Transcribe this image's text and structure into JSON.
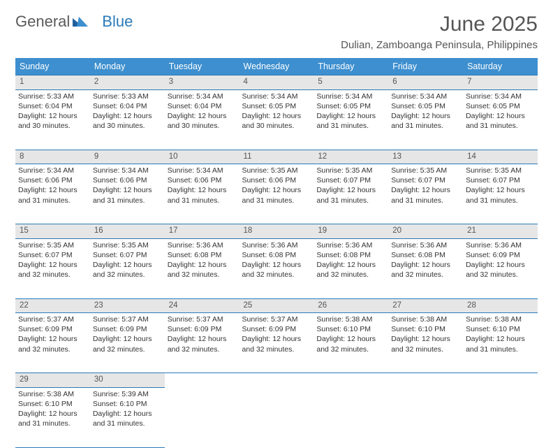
{
  "brand": {
    "part1": "General",
    "part2": "Blue"
  },
  "title": "June 2025",
  "location": "Dulian, Zamboanga Peninsula, Philippines",
  "colors": {
    "header_bg": "#3d8fcf",
    "border": "#2a7ab8",
    "daynum_bg": "#e6e6e6",
    "text": "#333333",
    "title_text": "#555555"
  },
  "fonts": {
    "base_family": "Arial",
    "title_size_pt": 22,
    "cell_size_pt": 8
  },
  "days": [
    "Sunday",
    "Monday",
    "Tuesday",
    "Wednesday",
    "Thursday",
    "Friday",
    "Saturday"
  ],
  "weeks": [
    [
      {
        "n": "1",
        "sr": "5:33 AM",
        "ss": "6:04 PM",
        "dl": "12 hours and 30 minutes."
      },
      {
        "n": "2",
        "sr": "5:33 AM",
        "ss": "6:04 PM",
        "dl": "12 hours and 30 minutes."
      },
      {
        "n": "3",
        "sr": "5:34 AM",
        "ss": "6:04 PM",
        "dl": "12 hours and 30 minutes."
      },
      {
        "n": "4",
        "sr": "5:34 AM",
        "ss": "6:05 PM",
        "dl": "12 hours and 30 minutes."
      },
      {
        "n": "5",
        "sr": "5:34 AM",
        "ss": "6:05 PM",
        "dl": "12 hours and 31 minutes."
      },
      {
        "n": "6",
        "sr": "5:34 AM",
        "ss": "6:05 PM",
        "dl": "12 hours and 31 minutes."
      },
      {
        "n": "7",
        "sr": "5:34 AM",
        "ss": "6:05 PM",
        "dl": "12 hours and 31 minutes."
      }
    ],
    [
      {
        "n": "8",
        "sr": "5:34 AM",
        "ss": "6:06 PM",
        "dl": "12 hours and 31 minutes."
      },
      {
        "n": "9",
        "sr": "5:34 AM",
        "ss": "6:06 PM",
        "dl": "12 hours and 31 minutes."
      },
      {
        "n": "10",
        "sr": "5:34 AM",
        "ss": "6:06 PM",
        "dl": "12 hours and 31 minutes."
      },
      {
        "n": "11",
        "sr": "5:35 AM",
        "ss": "6:06 PM",
        "dl": "12 hours and 31 minutes."
      },
      {
        "n": "12",
        "sr": "5:35 AM",
        "ss": "6:07 PM",
        "dl": "12 hours and 31 minutes."
      },
      {
        "n": "13",
        "sr": "5:35 AM",
        "ss": "6:07 PM",
        "dl": "12 hours and 31 minutes."
      },
      {
        "n": "14",
        "sr": "5:35 AM",
        "ss": "6:07 PM",
        "dl": "12 hours and 31 minutes."
      }
    ],
    [
      {
        "n": "15",
        "sr": "5:35 AM",
        "ss": "6:07 PM",
        "dl": "12 hours and 32 minutes."
      },
      {
        "n": "16",
        "sr": "5:35 AM",
        "ss": "6:07 PM",
        "dl": "12 hours and 32 minutes."
      },
      {
        "n": "17",
        "sr": "5:36 AM",
        "ss": "6:08 PM",
        "dl": "12 hours and 32 minutes."
      },
      {
        "n": "18",
        "sr": "5:36 AM",
        "ss": "6:08 PM",
        "dl": "12 hours and 32 minutes."
      },
      {
        "n": "19",
        "sr": "5:36 AM",
        "ss": "6:08 PM",
        "dl": "12 hours and 32 minutes."
      },
      {
        "n": "20",
        "sr": "5:36 AM",
        "ss": "6:08 PM",
        "dl": "12 hours and 32 minutes."
      },
      {
        "n": "21",
        "sr": "5:36 AM",
        "ss": "6:09 PM",
        "dl": "12 hours and 32 minutes."
      }
    ],
    [
      {
        "n": "22",
        "sr": "5:37 AM",
        "ss": "6:09 PM",
        "dl": "12 hours and 32 minutes."
      },
      {
        "n": "23",
        "sr": "5:37 AM",
        "ss": "6:09 PM",
        "dl": "12 hours and 32 minutes."
      },
      {
        "n": "24",
        "sr": "5:37 AM",
        "ss": "6:09 PM",
        "dl": "12 hours and 32 minutes."
      },
      {
        "n": "25",
        "sr": "5:37 AM",
        "ss": "6:09 PM",
        "dl": "12 hours and 32 minutes."
      },
      {
        "n": "26",
        "sr": "5:38 AM",
        "ss": "6:10 PM",
        "dl": "12 hours and 32 minutes."
      },
      {
        "n": "27",
        "sr": "5:38 AM",
        "ss": "6:10 PM",
        "dl": "12 hours and 32 minutes."
      },
      {
        "n": "28",
        "sr": "5:38 AM",
        "ss": "6:10 PM",
        "dl": "12 hours and 31 minutes."
      }
    ],
    [
      {
        "n": "29",
        "sr": "5:38 AM",
        "ss": "6:10 PM",
        "dl": "12 hours and 31 minutes."
      },
      {
        "n": "30",
        "sr": "5:39 AM",
        "ss": "6:10 PM",
        "dl": "12 hours and 31 minutes."
      },
      null,
      null,
      null,
      null,
      null
    ]
  ],
  "labels": {
    "sunrise": "Sunrise:",
    "sunset": "Sunset:",
    "daylight": "Daylight:"
  }
}
